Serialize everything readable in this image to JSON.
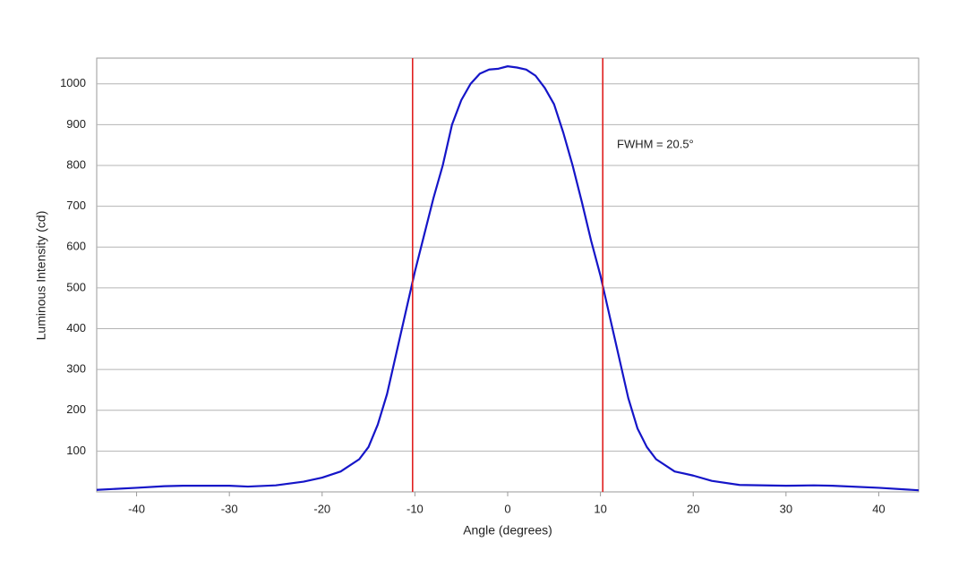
{
  "chart_data": {
    "type": "line",
    "x_label": "Angle (degrees)",
    "y_label": "Luminous Intensity (cd)",
    "annotation": "FWHM = 20.5°",
    "x": [
      -44.3,
      -40,
      -37,
      -35,
      -30,
      -28,
      -25,
      -22,
      -20,
      -18,
      -16,
      -15,
      -14,
      -13,
      -12,
      -11,
      -10,
      -9,
      -8,
      -7,
      -6,
      -5,
      -4,
      -3,
      -2,
      -1,
      0,
      1,
      2,
      3,
      4,
      5,
      6,
      7,
      8,
      9,
      10,
      11,
      12,
      13,
      14,
      15,
      16,
      18,
      20,
      22,
      25,
      30,
      33,
      35,
      40,
      44.3
    ],
    "values": [
      5,
      10,
      14,
      15,
      15,
      13,
      16,
      25,
      35,
      50,
      80,
      110,
      165,
      240,
      340,
      440,
      540,
      630,
      720,
      800,
      900,
      960,
      1000,
      1025,
      1035,
      1037,
      1043,
      1040,
      1035,
      1020,
      990,
      950,
      880,
      800,
      710,
      615,
      530,
      430,
      330,
      230,
      155,
      110,
      80,
      50,
      40,
      27,
      17,
      15,
      16,
      15,
      10,
      4
    ],
    "color": "#1515c8",
    "vlines": [
      -10.25,
      10.25
    ],
    "vline_color": "#e02020",
    "xlim": [
      -44.3,
      44.3
    ],
    "xticks": [
      -40,
      -30,
      -20,
      -10,
      0,
      10,
      20,
      30,
      40
    ],
    "ylim": [
      0,
      1063
    ],
    "yticks": [
      100,
      200,
      300,
      400,
      500,
      600,
      700,
      800,
      900,
      1000
    ],
    "grid": true
  }
}
